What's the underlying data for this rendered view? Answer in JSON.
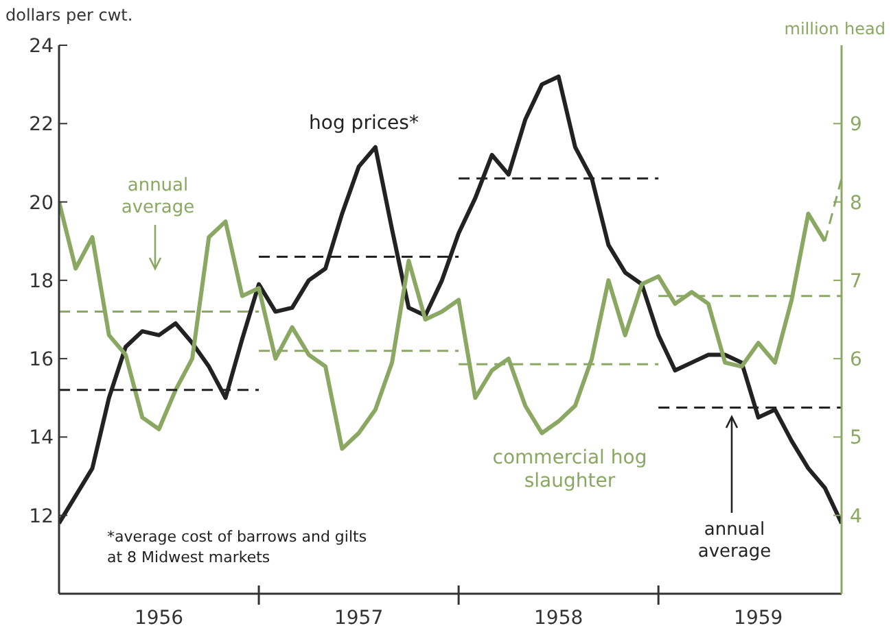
{
  "chart_data": {
    "type": "line",
    "ylabel": "dollars per cwt.",
    "y2label": "million head",
    "annotations": [
      "annual average",
      "annual average",
      "*average cost of barrows and gilts at 8 Midwest markets"
    ],
    "x": [
      "1956-01",
      "1956-02",
      "1956-03",
      "1956-04",
      "1956-05",
      "1956-06",
      "1956-07",
      "1956-08",
      "1956-09",
      "1956-10",
      "1956-11",
      "1956-12",
      "1957-01",
      "1957-02",
      "1957-03",
      "1957-04",
      "1957-05",
      "1957-06",
      "1957-07",
      "1957-08",
      "1957-09",
      "1957-10",
      "1957-11",
      "1957-12",
      "1958-01",
      "1958-02",
      "1958-03",
      "1958-04",
      "1958-05",
      "1958-06",
      "1958-07",
      "1958-08",
      "1958-09",
      "1958-10",
      "1958-11",
      "1958-12",
      "1959-01",
      "1959-02",
      "1959-03",
      "1959-04",
      "1959-05",
      "1959-06",
      "1959-07",
      "1959-08",
      "1959-09",
      "1959-10",
      "1959-11",
      "1959-12"
    ],
    "xlim": [
      "1956-01",
      "1959-12"
    ],
    "xticks": [
      {
        "value": "1956-07",
        "label": "1956"
      },
      {
        "value": "1957",
        "label": null
      },
      {
        "value": "1957-07",
        "label": "1957"
      },
      {
        "value": "1958",
        "label": null
      },
      {
        "value": "1958-07",
        "label": "1958"
      },
      {
        "value": "1959",
        "label": null
      },
      {
        "value": "1959-07",
        "label": "1959"
      }
    ],
    "ylim": [
      10,
      24
    ],
    "yticks": [
      12,
      14,
      16,
      18,
      20,
      22,
      24
    ],
    "y2lim": [
      3,
      10
    ],
    "y2ticks": [
      4,
      5,
      6,
      7,
      8,
      9
    ],
    "series": [
      {
        "name": "hog prices*",
        "color": "#222222",
        "values": [
          11.8,
          12.5,
          13.2,
          15.0,
          16.3,
          16.7,
          16.6,
          16.9,
          16.4,
          15.8,
          15.0,
          16.5,
          17.9,
          17.2,
          17.3,
          18.0,
          18.3,
          19.7,
          20.9,
          21.4,
          19.3,
          17.3,
          17.1,
          18.0,
          19.2,
          20.1,
          21.2,
          20.7,
          22.1,
          23.0,
          23.2,
          21.4,
          20.6,
          18.9,
          18.2,
          17.9,
          16.6,
          15.7,
          15.9,
          16.1,
          16.1,
          15.9,
          14.5,
          14.7,
          13.9,
          13.2,
          12.7,
          11.8
        ]
      },
      {
        "name": "commercial hog slaughter",
        "color": "#8aa862",
        "axis": "y2",
        "values": [
          8.0,
          7.15,
          7.55,
          6.3,
          6.05,
          5.25,
          5.1,
          5.6,
          6.0,
          7.55,
          7.75,
          6.8,
          6.9,
          6.0,
          6.4,
          6.05,
          5.9,
          4.85,
          5.05,
          5.35,
          5.95,
          7.25,
          6.5,
          6.6,
          6.75,
          5.5,
          5.85,
          6.0,
          5.4,
          5.05,
          5.2,
          5.4,
          6.0,
          7.0,
          6.3,
          6.95,
          7.05,
          6.7,
          6.85,
          6.7,
          5.95,
          5.9,
          6.2,
          5.95,
          6.75,
          7.85,
          7.5,
          null
        ]
      },
      {
        "color": "#8aa862",
        "axis": "y2",
        "line_style": "dashed",
        "values": [
          null,
          null,
          null,
          null,
          null,
          null,
          null,
          null,
          null,
          null,
          null,
          null,
          null,
          null,
          null,
          null,
          null,
          null,
          null,
          null,
          null,
          null,
          null,
          null,
          null,
          null,
          null,
          null,
          null,
          null,
          null,
          null,
          null,
          null,
          null,
          null,
          null,
          null,
          null,
          null,
          null,
          null,
          null,
          null,
          null,
          null,
          7.5,
          8.3
        ]
      },
      {
        "color": "#222222",
        "line_style": "dashed",
        "x": [
          "1956",
          "1957"
        ],
        "values": [
          15.2,
          15.2
        ]
      },
      {
        "color": "#222222",
        "line_style": "dashed",
        "x": [
          "1957",
          "1958"
        ],
        "values": [
          18.6,
          18.6
        ]
      },
      {
        "color": "#222222",
        "line_style": "dashed",
        "x": [
          "1958",
          "1959"
        ],
        "values": [
          20.6,
          20.6
        ]
      },
      {
        "color": "#222222",
        "line_style": "dashed",
        "x": [
          "1959",
          "1959-12"
        ],
        "values": [
          14.75,
          14.75
        ]
      },
      {
        "color": "#8aa862",
        "axis": "y2",
        "line_style": "dashed",
        "x": [
          "1956",
          "1957"
        ],
        "values": [
          6.6,
          6.6
        ]
      },
      {
        "color": "#8aa862",
        "axis": "y2",
        "line_style": "dashed",
        "x": [
          "1957",
          "1958"
        ],
        "values": [
          6.1,
          6.1
        ]
      },
      {
        "color": "#8aa862",
        "axis": "y2",
        "line_style": "dashed",
        "x": [
          "1958",
          "1959"
        ],
        "values": [
          5.93,
          5.93
        ]
      },
      {
        "color": "#8aa862",
        "axis": "y2",
        "line_style": "dashed",
        "x": [
          "1959",
          "1959-12"
        ],
        "values": [
          6.8,
          6.8
        ]
      }
    ]
  }
}
